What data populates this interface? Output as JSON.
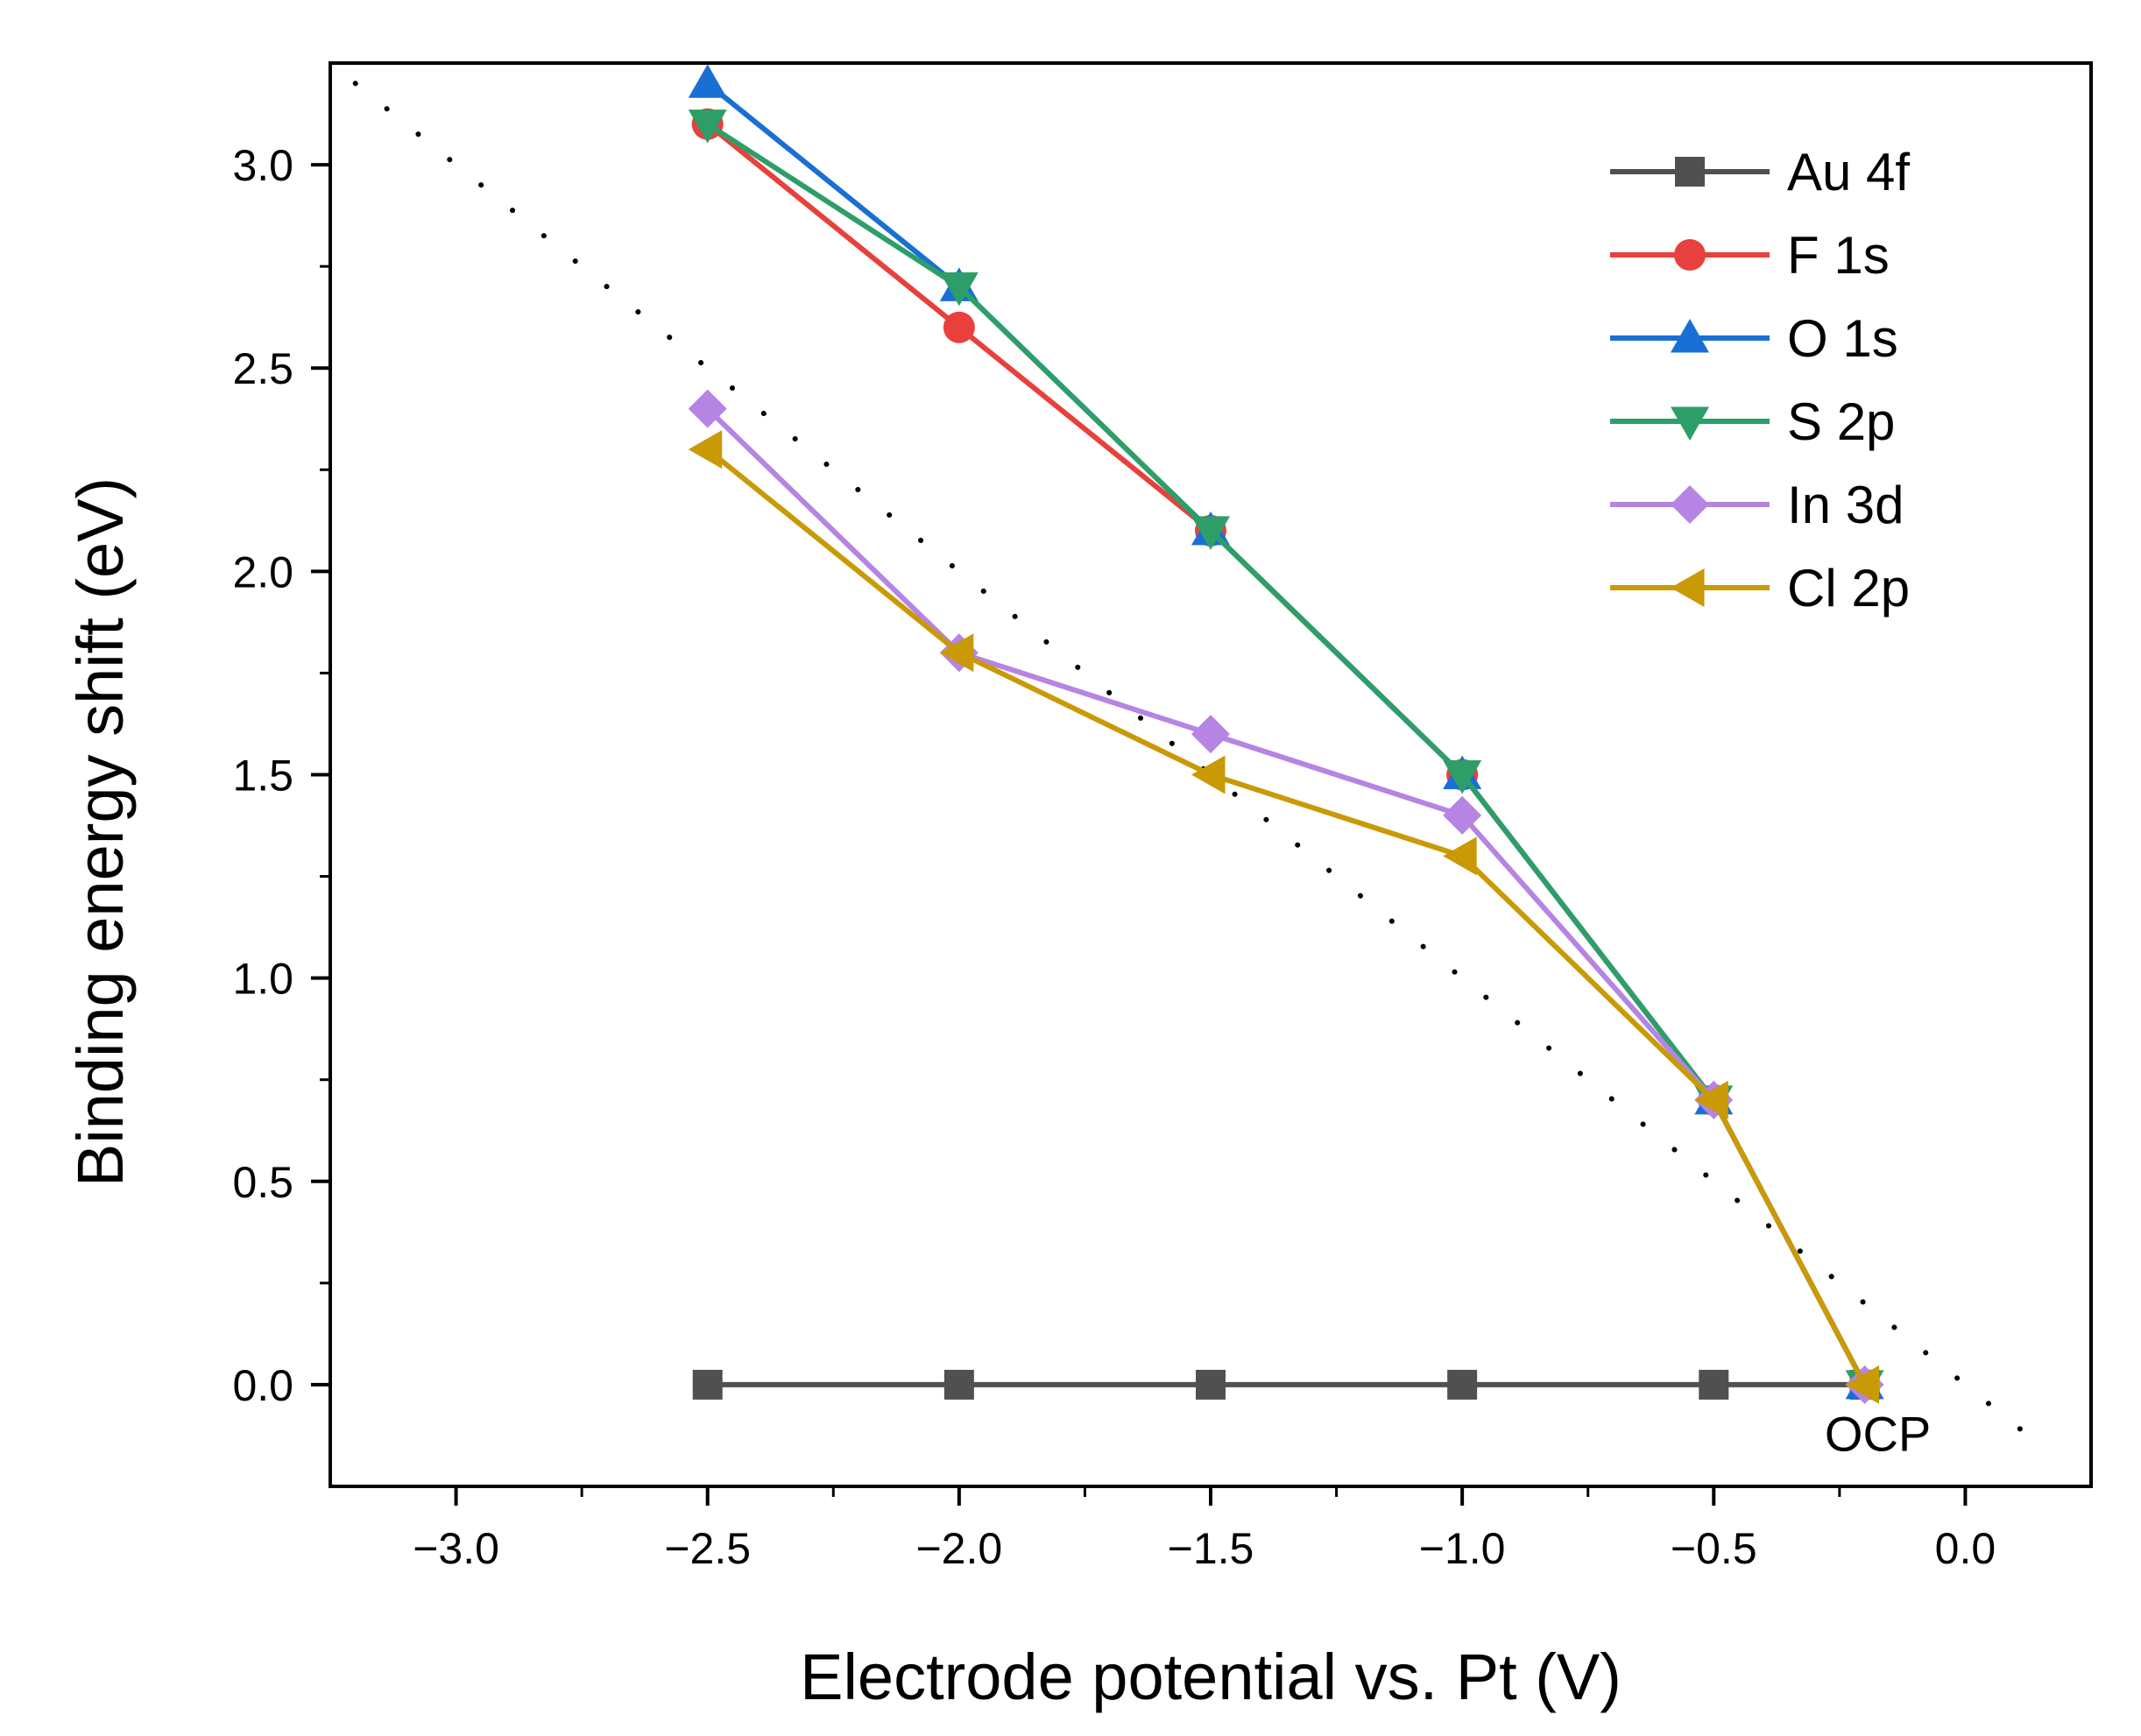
{
  "chart_data": {
    "type": "line",
    "title": "",
    "xlabel": "Electrode potential vs. Pt (V)",
    "ylabel": "Binding energy shift (eV)",
    "xlim": [
      -3.25,
      0.25
    ],
    "ylim": [
      -0.25,
      3.25
    ],
    "xticks": [
      -3.0,
      -2.5,
      -2.0,
      -1.5,
      -1.0,
      -0.5,
      0.0
    ],
    "xtick_labels": [
      "−3.0",
      "−2.5",
      "−2.0",
      "−1.5",
      "−1.0",
      "−0.5",
      "0.0"
    ],
    "yticks": [
      0.0,
      0.5,
      1.0,
      1.5,
      2.0,
      2.5,
      3.0
    ],
    "ytick_labels": [
      "0.0",
      "0.5",
      "1.0",
      "1.5",
      "2.0",
      "2.5",
      "3.0"
    ],
    "grid": false,
    "legend_position": "top-right",
    "series": [
      {
        "name": "Au 4f",
        "color": "#505050",
        "marker": "square",
        "x": [
          -2.5,
          -2.0,
          -1.5,
          -1.0,
          -0.5,
          -0.2
        ],
        "y": [
          0.0,
          0.0,
          0.0,
          0.0,
          0.0,
          0.0
        ]
      },
      {
        "name": "F 1s",
        "color": "#e8403c",
        "marker": "circle",
        "x": [
          -2.5,
          -2.0,
          -1.5,
          -1.0,
          -0.5,
          -0.2
        ],
        "y": [
          3.1,
          2.6,
          2.1,
          1.5,
          0.7,
          0.0
        ]
      },
      {
        "name": "O 1s",
        "color": "#1a6fd4",
        "marker": "triangle-up",
        "x": [
          -2.5,
          -2.0,
          -1.5,
          -1.0,
          -0.5,
          -0.2
        ],
        "y": [
          3.2,
          2.7,
          2.1,
          1.5,
          0.7,
          0.0
        ]
      },
      {
        "name": "S 2p",
        "color": "#2e9e68",
        "marker": "triangle-down",
        "x": [
          -2.5,
          -2.0,
          -1.5,
          -1.0,
          -0.5,
          -0.2
        ],
        "y": [
          3.1,
          2.7,
          2.1,
          1.5,
          0.7,
          0.0
        ]
      },
      {
        "name": "In 3d",
        "color": "#b684e2",
        "marker": "diamond",
        "x": [
          -2.5,
          -2.0,
          -1.5,
          -1.0,
          -0.5,
          -0.2
        ],
        "y": [
          2.4,
          1.8,
          1.6,
          1.4,
          0.7,
          0.0
        ]
      },
      {
        "name": "Cl 2p",
        "color": "#c99a06",
        "marker": "triangle-left",
        "x": [
          -2.5,
          -2.0,
          -1.5,
          -1.0,
          -0.5,
          -0.2
        ],
        "y": [
          2.3,
          1.8,
          1.5,
          1.3,
          0.7,
          0.0
        ]
      }
    ],
    "reference_line": {
      "style": "dotted",
      "color": "#000000",
      "x": [
        -3.2,
        0.15
      ],
      "y": [
        3.2,
        -0.15
      ]
    },
    "annotations": [
      {
        "text": "OCP",
        "x": -0.2,
        "y": -0.12
      }
    ]
  }
}
